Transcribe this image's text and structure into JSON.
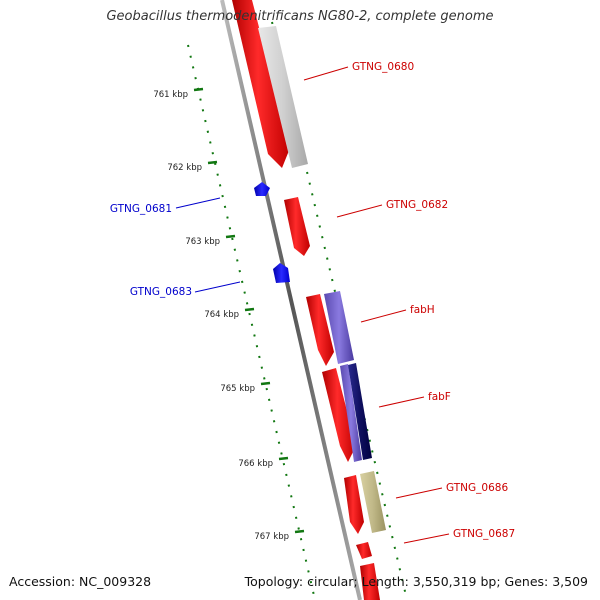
{
  "title": "Geobacillus thermodenitrificans NG80-2, complete genome",
  "accession": "Accession: NC_009328",
  "topology": "Topology: circular; Length: 3,550,319 bp; Genes: 3,509",
  "ticks": [
    "761 kbp",
    "762 kbp",
    "763 kbp",
    "764 kbp",
    "765 kbp",
    "766 kbp",
    "767 kbp"
  ],
  "genes": [
    {
      "label": "GTNG_0680",
      "strand": "plus",
      "color": "#cc0000"
    },
    {
      "label": "GTNG_0681",
      "strand": "minus",
      "color": "#0000cc"
    },
    {
      "label": "GTNG_0682",
      "strand": "plus",
      "color": "#cc0000"
    },
    {
      "label": "GTNG_0683",
      "strand": "minus",
      "color": "#0000cc"
    },
    {
      "label": "fabH",
      "strand": "plus",
      "color": "#cc0000"
    },
    {
      "label": "fabF",
      "strand": "plus",
      "color": "#cc0000"
    },
    {
      "label": "GTNG_0686",
      "strand": "plus",
      "color": "#cc0000"
    },
    {
      "label": "GTNG_0687",
      "strand": "plus",
      "color": "#cc0000"
    }
  ],
  "colors": {
    "backbone": "#8a8a8a",
    "gene_fill": "#ff0000",
    "minus_gene": "#0000ff",
    "tick": "#117711",
    "gray_bar": "#c8c8c8",
    "purple_bar": "#7766cc",
    "navy_bar": "#1a1a7a",
    "olive_bar": "#b8b07a"
  }
}
